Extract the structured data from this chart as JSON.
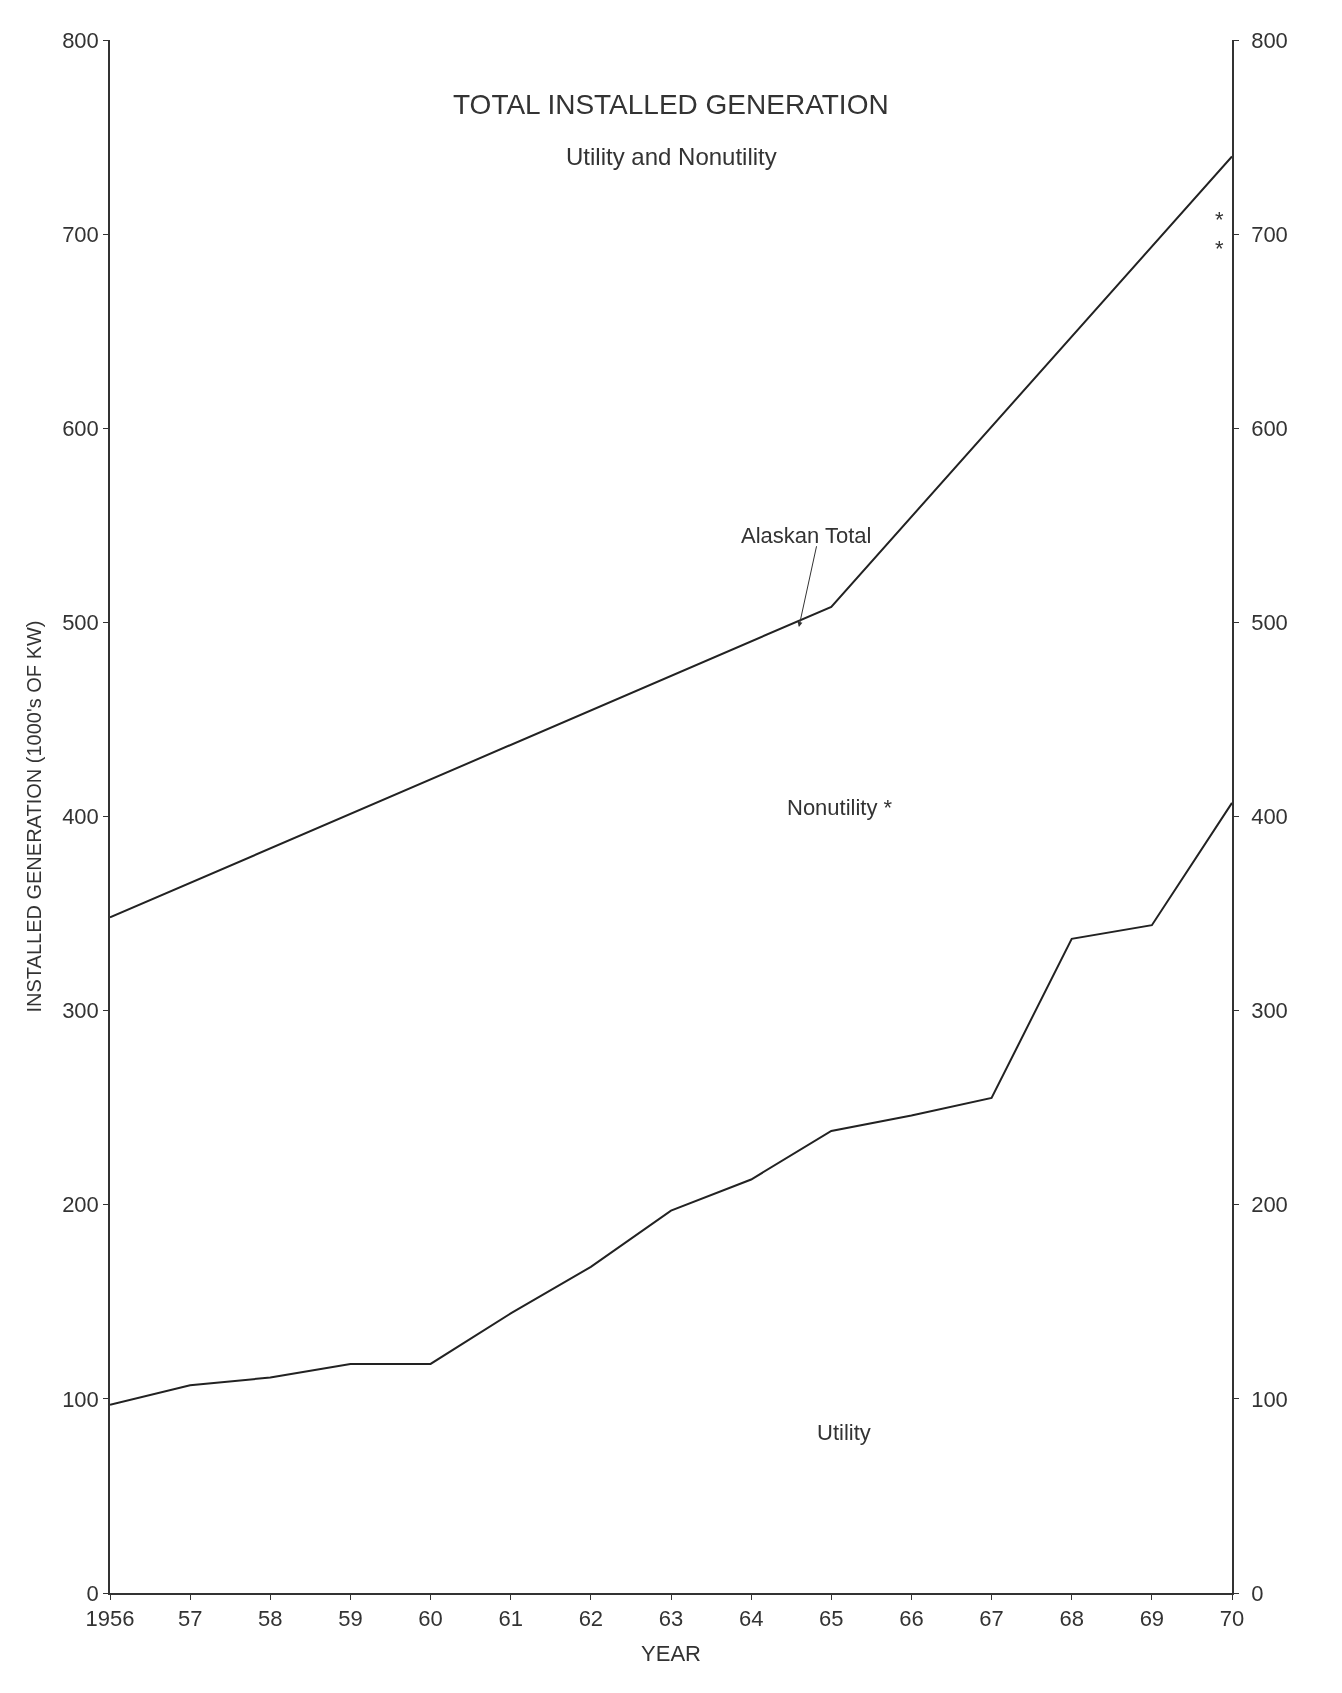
{
  "chart_data": {
    "type": "line",
    "title": "TOTAL INSTALLED GENERATION",
    "subtitle": "Utility and Nonutility",
    "xlabel": "YEAR",
    "ylabel": "INSTALLED GENERATION (1000's OF KW)",
    "series": [
      {
        "name": null,
        "color": "#222222",
        "x": [
          1956,
          1965,
          1970
        ],
        "values": [
          348,
          508,
          740
        ]
      },
      {
        "name": null,
        "color": "#222222",
        "x": [
          1956,
          1957,
          1958,
          1959,
          1960,
          1961,
          1962,
          1963,
          1964,
          1965,
          1966,
          1967,
          1968,
          1969,
          1970
        ],
        "values": [
          97,
          107,
          111,
          118,
          118,
          144,
          168,
          197,
          213,
          238,
          246,
          255,
          337,
          344,
          407
        ]
      }
    ],
    "annotations": [
      "Alaskan Total",
      "Nonutility *",
      "Utility",
      "*",
      "*"
    ],
    "xlim": [
      1956,
      1970
    ],
    "xticks": [
      1956,
      {
        "value": 1957,
        "label": "57"
      },
      {
        "value": 1958,
        "label": "58"
      },
      {
        "value": 1959,
        "label": "59"
      },
      {
        "value": 1960,
        "label": "60"
      },
      {
        "value": 1961,
        "label": "61"
      },
      {
        "value": 1962,
        "label": "62"
      },
      {
        "value": 1963,
        "label": "63"
      },
      {
        "value": 1964,
        "label": "64"
      },
      {
        "value": 1965,
        "label": "65"
      },
      {
        "value": 1966,
        "label": "66"
      },
      {
        "value": 1967,
        "label": "67"
      },
      {
        "value": 1968,
        "label": "68"
      },
      {
        "value": 1969,
        "label": "69"
      },
      {
        "value": 1970,
        "label": "70"
      }
    ],
    "ylim": [
      0,
      800
    ],
    "yticks": [
      0,
      100,
      200,
      300,
      400,
      500,
      600,
      700,
      800
    ],
    "y2lim": [
      0,
      800
    ],
    "y2ticks": [
      0,
      100,
      200,
      300,
      400,
      500,
      600,
      700,
      800
    ],
    "marker": "none",
    "line_style": "solid"
  }
}
